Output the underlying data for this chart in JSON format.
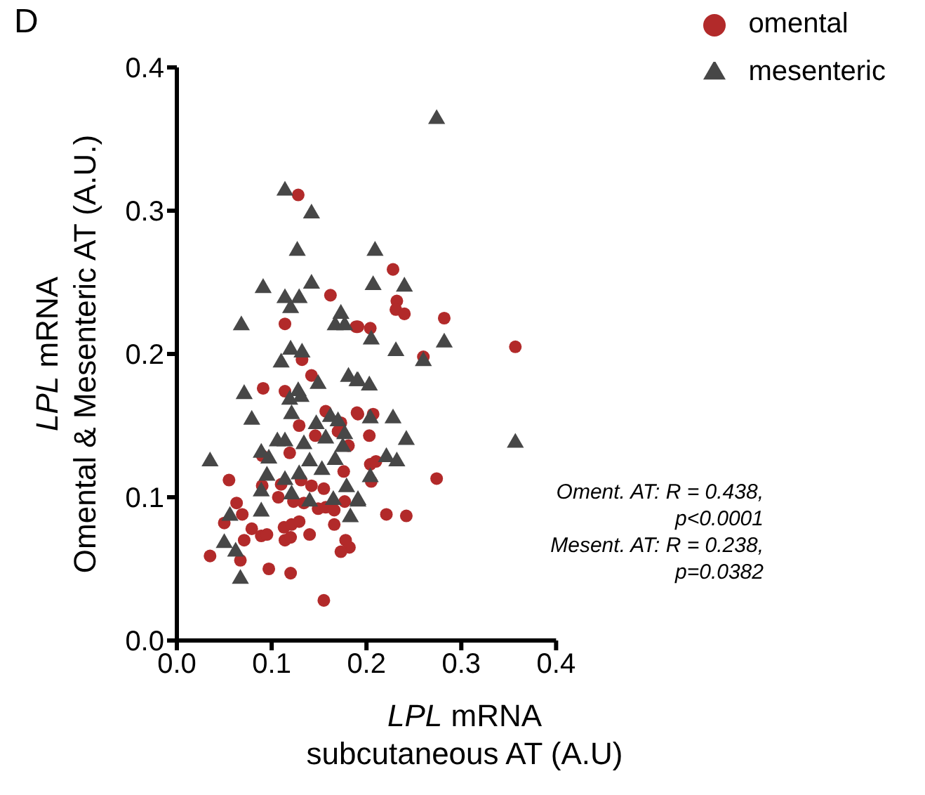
{
  "chart_data": {
    "type": "scatter",
    "xlabel": "LPL mRNA\nsubcutaneous AT (A.U)",
    "ylabel": "LPL mRNA\nOmental & Mesenteric AT (A.U.)",
    "xlim": [
      0,
      0.4
    ],
    "xticks": [
      {
        "value": 0,
        "label": "0.0"
      },
      0.1,
      0.2,
      0.3,
      0.4
    ],
    "ylim": [
      0,
      0.4
    ],
    "yticks": [
      {
        "value": 0,
        "label": "0.0"
      },
      0.1,
      0.2,
      0.3,
      0.4
    ],
    "grid": false,
    "legend": "top right",
    "annotations": [
      "D",
      "Oment. AT: R = 0.438,\np<0.0001",
      "Mesent. AT: R = 0.238,\np=0.0382"
    ],
    "series": [
      {
        "name": "omental",
        "color": "#b22a2a",
        "marker": "circle",
        "x": [
          0.128,
          0.162,
          0.189,
          0.114,
          0.228,
          0.232,
          0.231,
          0.24,
          0.282,
          0.191,
          0.204,
          0.26,
          0.357,
          0.191,
          0.207,
          0.203,
          0.204,
          0.21,
          0.205,
          0.274,
          0.221,
          0.242,
          0.132,
          0.142,
          0.091,
          0.114,
          0.157,
          0.19,
          0.129,
          0.173,
          0.146,
          0.17,
          0.181,
          0.119,
          0.09,
          0.176,
          0.055,
          0.09,
          0.11,
          0.131,
          0.142,
          0.155,
          0.107,
          0.123,
          0.134,
          0.177,
          0.063,
          0.069,
          0.149,
          0.157,
          0.166,
          0.05,
          0.079,
          0.113,
          0.121,
          0.129,
          0.166,
          0.089,
          0.095,
          0.114,
          0.12,
          0.14,
          0.071,
          0.178,
          0.182,
          0.173,
          0.035,
          0.067,
          0.097,
          0.12,
          0.155
        ],
        "values": [
          0.311,
          0.241,
          0.219,
          0.221,
          0.259,
          0.237,
          0.231,
          0.228,
          0.225,
          0.219,
          0.218,
          0.198,
          0.205,
          0.158,
          0.158,
          0.143,
          0.123,
          0.125,
          0.111,
          0.113,
          0.088,
          0.087,
          0.196,
          0.185,
          0.176,
          0.174,
          0.16,
          0.159,
          0.15,
          0.152,
          0.143,
          0.146,
          0.136,
          0.131,
          0.129,
          0.118,
          0.112,
          0.108,
          0.109,
          0.112,
          0.108,
          0.106,
          0.1,
          0.097,
          0.096,
          0.097,
          0.096,
          0.088,
          0.092,
          0.093,
          0.091,
          0.082,
          0.078,
          0.079,
          0.081,
          0.083,
          0.081,
          0.073,
          0.074,
          0.07,
          0.072,
          0.074,
          0.07,
          0.07,
          0.065,
          0.062,
          0.059,
          0.056,
          0.05,
          0.047,
          0.028
        ]
      },
      {
        "name": "mesenteric",
        "color": "#474747",
        "marker": "triangle",
        "x": [
          0.114,
          0.142,
          0.127,
          0.091,
          0.142,
          0.114,
          0.129,
          0.12,
          0.068,
          0.173,
          0.167,
          0.177,
          0.12,
          0.132,
          0.11,
          0.274,
          0.209,
          0.207,
          0.24,
          0.205,
          0.231,
          0.282,
          0.26,
          0.191,
          0.203,
          0.204,
          0.228,
          0.242,
          0.221,
          0.232,
          0.204,
          0.357,
          0.191,
          0.071,
          0.079,
          0.149,
          0.181,
          0.19,
          0.128,
          0.131,
          0.119,
          0.121,
          0.147,
          0.157,
          0.162,
          0.17,
          0.177,
          0.175,
          0.106,
          0.114,
          0.134,
          0.097,
          0.089,
          0.035,
          0.14,
          0.167,
          0.153,
          0.095,
          0.129,
          0.114,
          0.179,
          0.191,
          0.089,
          0.121,
          0.14,
          0.165,
          0.089,
          0.056,
          0.183,
          0.05,
          0.062,
          0.067
        ],
        "values": [
          0.314,
          0.298,
          0.272,
          0.246,
          0.249,
          0.239,
          0.239,
          0.232,
          0.22,
          0.228,
          0.22,
          0.22,
          0.203,
          0.201,
          0.194,
          0.364,
          0.272,
          0.248,
          0.247,
          0.21,
          0.202,
          0.208,
          0.195,
          0.181,
          0.178,
          0.155,
          0.155,
          0.14,
          0.128,
          0.125,
          0.114,
          0.138,
          0.098,
          0.172,
          0.154,
          0.179,
          0.184,
          0.181,
          0.174,
          0.17,
          0.168,
          0.158,
          0.151,
          0.141,
          0.156,
          0.153,
          0.144,
          0.135,
          0.139,
          0.139,
          0.137,
          0.127,
          0.131,
          0.125,
          0.125,
          0.126,
          0.119,
          0.115,
          0.116,
          0.112,
          0.107,
          0.097,
          0.104,
          0.102,
          0.097,
          0.098,
          0.09,
          0.087,
          0.086,
          0.068,
          0.062,
          0.043
        ]
      }
    ]
  }
}
